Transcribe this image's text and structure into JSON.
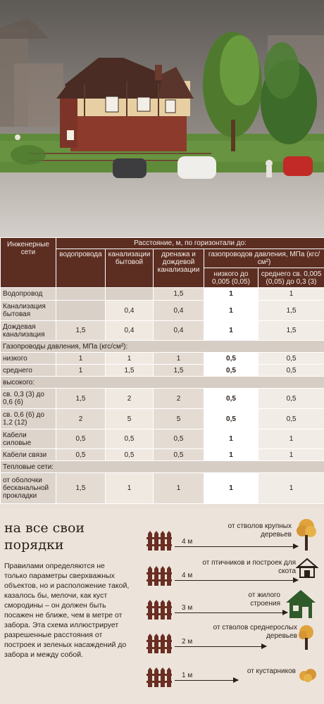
{
  "colors": {
    "header_bg": "#5c2e22",
    "page_bg": "#ece4db",
    "tree_orange": "#e0a33c"
  },
  "table": {
    "col_networks": "Инженерные сети",
    "col_distance": "Расстояние, м, по горизонтали до:",
    "col_water": "водопровода",
    "col_sewer": "канализации бытовой",
    "col_drain": "дренажа и дождевой канализации",
    "col_gas": "газопроводов давления, МПа (кгс/см²)",
    "col_gas_low": "низкого до 0,005 (0,05)",
    "col_gas_mid": "среднего св. 0,005 (0,05) до 0,3 (3)",
    "rows": [
      {
        "label": "Водопровод",
        "v": [
          "",
          "",
          "1,5",
          "1",
          "1"
        ]
      },
      {
        "label": "Канализация бытовая",
        "v": [
          "",
          "0,4",
          "0,4",
          "1",
          "1,5"
        ]
      },
      {
        "label": "Дождевая канализация",
        "v": [
          "1,5",
          "0,4",
          "0,4",
          "1",
          "1,5"
        ]
      }
    ],
    "section_gas": "Газопроводы давления, МПа (кгс/см²):",
    "gas_rows": [
      {
        "label": "низкого",
        "v": [
          "1",
          "1",
          "1",
          "0,5",
          "0,5"
        ]
      },
      {
        "label": "среднего",
        "v": [
          "1",
          "1,5",
          "1,5",
          "0,5",
          "0,5"
        ]
      }
    ],
    "section_high": "высокого:",
    "high_rows": [
      {
        "label": "св. 0,3 (3) до 0,6 (6)",
        "v": [
          "1,5",
          "2",
          "2",
          "0,5",
          "0,5"
        ]
      },
      {
        "label": "св. 0,6 (6) до 1,2 (12)",
        "v": [
          "2",
          "5",
          "5",
          "0,5",
          "0,5"
        ]
      },
      {
        "label": "Кабели силовые",
        "v": [
          "0,5",
          "0,5",
          "0,5",
          "1",
          "1"
        ]
      },
      {
        "label": "Кабели связи",
        "v": [
          "0,5",
          "0,5",
          "0,5",
          "1",
          "1"
        ]
      }
    ],
    "section_heat": "Тепловые сети:",
    "heat_rows": [
      {
        "label": "от оболочки бесканальной прокладки",
        "v": [
          "1,5",
          "1",
          "1",
          "1",
          "1"
        ]
      }
    ]
  },
  "info": {
    "title": "на все свои порядки",
    "text": "Правилами определяются не только параметры сверхважных объектов, но и расположение такой, казалось бы, мелочи, как куст смородины – он должен быть посажен не ближе, чем в метре от забора. Эта схема иллюстрирует разрешенные расстояния от построек и зеленых насаждений до забора и между собой.",
    "items": [
      {
        "dist": "4 м",
        "label": "от стволов крупных деревьев",
        "icon": "tall-tree-icon"
      },
      {
        "dist": "4 м",
        "label": "от птичников и построек для скота",
        "icon": "shed-icon"
      },
      {
        "dist": "3 м",
        "label": "от жилого строения",
        "icon": "house-icon"
      },
      {
        "dist": "2 м",
        "label": "от стволов среднерослых деревьев",
        "icon": "medium-tree-icon"
      },
      {
        "dist": "1 м",
        "label": "от кустарников",
        "icon": "bush-icon"
      }
    ]
  }
}
